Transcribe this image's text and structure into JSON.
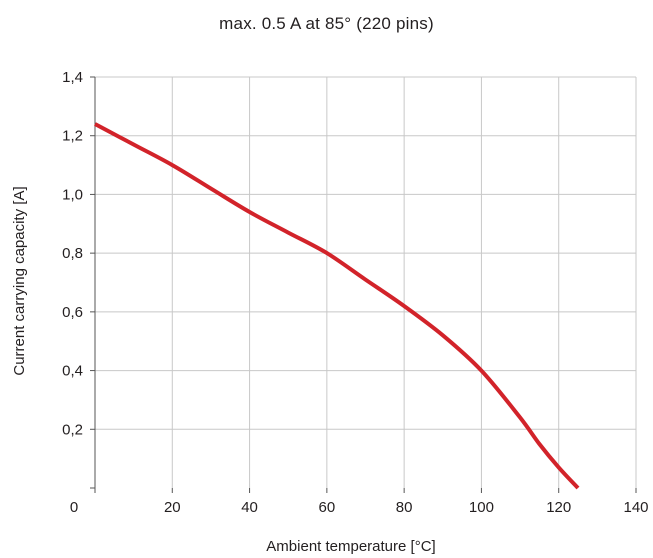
{
  "chart_data": {
    "type": "line",
    "title": "max. 0.5 A  at 85° (220 pins)",
    "xlabel": "Ambient temperature [°C]",
    "ylabel": "Current carrying capacity [A]",
    "xlim": [
      0,
      140
    ],
    "ylim": [
      0,
      1.4
    ],
    "x_ticks": [
      0,
      20,
      40,
      60,
      80,
      100,
      120,
      140
    ],
    "x_tick_labels": [
      "0",
      "20",
      "40",
      "60",
      "80",
      "100",
      "120",
      "140"
    ],
    "y_ticks": [
      0,
      0.2,
      0.4,
      0.6,
      0.8,
      1.0,
      1.2,
      1.4
    ],
    "y_tick_labels": [
      "",
      "0,2",
      "0,4",
      "0,6",
      "0,8",
      "1,0",
      "1,2",
      "1,4"
    ],
    "grid": true,
    "line_color": "#d2232a",
    "series": [
      {
        "x": [
          0,
          10,
          20,
          30,
          40,
          50,
          60,
          70,
          80,
          90,
          100,
          110,
          115,
          120,
          125
        ],
        "values": [
          1.24,
          1.17,
          1.1,
          1.02,
          0.94,
          0.87,
          0.8,
          0.71,
          0.62,
          0.52,
          0.4,
          0.24,
          0.15,
          0.07,
          0.0
        ]
      }
    ]
  }
}
